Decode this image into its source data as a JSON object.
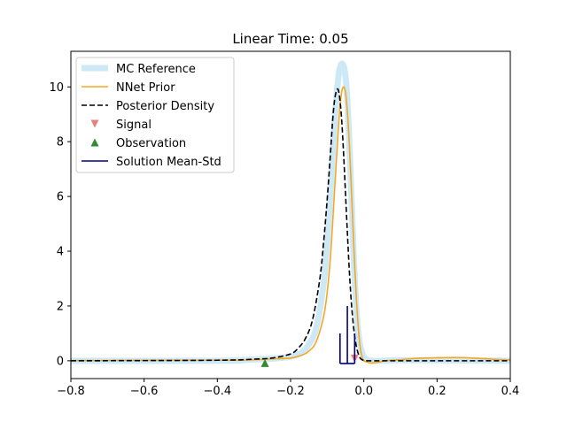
{
  "chart_data": {
    "type": "line",
    "title": "Linear Time: 0.05",
    "xlabel": "",
    "ylabel": "",
    "xlim": [
      -0.8,
      0.4
    ],
    "ylim": [
      -0.65,
      11.3
    ],
    "xticks": [
      -0.8,
      -0.6,
      -0.4,
      -0.2,
      0.0,
      0.2,
      0.4
    ],
    "xtick_labels": [
      "−0.8",
      "−0.6",
      "−0.4",
      "−0.2",
      "0.0",
      "0.2",
      "0.4"
    ],
    "yticks": [
      0,
      2,
      4,
      6,
      8,
      10
    ],
    "ytick_labels": [
      "0",
      "2",
      "4",
      "6",
      "8",
      "10"
    ],
    "grid": false,
    "legend_position": "top-left",
    "series": [
      {
        "name": "MC Reference",
        "style": "line",
        "color": "#cde9f6",
        "dash": "solid",
        "width": "thick",
        "x": [
          -0.8,
          -0.4,
          -0.3,
          -0.25,
          -0.2,
          -0.17,
          -0.15,
          -0.13,
          -0.11,
          -0.1,
          -0.09,
          -0.08,
          -0.07,
          -0.065,
          -0.06,
          -0.055,
          -0.05,
          -0.045,
          -0.04,
          -0.035,
          -0.03,
          -0.025,
          -0.02,
          -0.015,
          -0.01,
          0.0,
          0.01,
          0.02,
          0.05,
          0.1,
          0.2,
          0.4
        ],
        "y": [
          0.0,
          0.0,
          0.05,
          0.08,
          0.15,
          0.3,
          0.6,
          1.2,
          2.8,
          4.3,
          6.4,
          8.7,
          10.3,
          10.7,
          10.85,
          10.75,
          10.4,
          9.5,
          8.1,
          6.4,
          4.6,
          3.0,
          1.8,
          1.0,
          0.55,
          0.15,
          0.03,
          0.0,
          0.0,
          0.02,
          0.02,
          0.0
        ]
      },
      {
        "name": "NNet Prior",
        "style": "line",
        "color": "#f5a623",
        "dash": "solid",
        "width": "normal",
        "x": [
          -0.8,
          -0.4,
          -0.3,
          -0.25,
          -0.2,
          -0.17,
          -0.15,
          -0.13,
          -0.11,
          -0.1,
          -0.09,
          -0.08,
          -0.07,
          -0.065,
          -0.06,
          -0.055,
          -0.05,
          -0.045,
          -0.04,
          -0.035,
          -0.03,
          -0.025,
          -0.02,
          -0.015,
          -0.01,
          -0.005,
          0.0,
          0.01,
          0.02,
          0.04,
          0.06,
          0.1,
          0.15,
          0.2,
          0.25,
          0.3,
          0.35,
          0.4
        ],
        "y": [
          0.01,
          0.02,
          0.04,
          0.07,
          0.1,
          0.2,
          0.35,
          0.7,
          1.6,
          2.5,
          4.0,
          6.2,
          8.4,
          9.3,
          9.85,
          10.0,
          9.8,
          9.1,
          8.0,
          6.6,
          5.0,
          3.5,
          2.2,
          1.2,
          0.5,
          0.15,
          0.0,
          -0.05,
          -0.08,
          -0.05,
          0.0,
          0.04,
          0.09,
          0.11,
          0.12,
          0.1,
          0.06,
          0.03
        ]
      },
      {
        "name": "Posterior Density",
        "style": "line",
        "color": "#000000",
        "dash": "dashed",
        "width": "normal",
        "x": [
          -0.8,
          -0.4,
          -0.3,
          -0.25,
          -0.2,
          -0.18,
          -0.16,
          -0.14,
          -0.12,
          -0.11,
          -0.1,
          -0.09,
          -0.085,
          -0.08,
          -0.075,
          -0.07,
          -0.065,
          -0.06,
          -0.055,
          -0.05,
          -0.045,
          -0.04,
          -0.035,
          -0.03,
          -0.025,
          -0.02,
          -0.015,
          -0.01,
          -0.005,
          0.0,
          0.01,
          0.05,
          0.1,
          0.2,
          0.4
        ],
        "y": [
          0.0,
          0.02,
          0.06,
          0.1,
          0.25,
          0.45,
          0.8,
          1.5,
          3.0,
          4.3,
          5.9,
          7.8,
          8.8,
          9.5,
          9.85,
          9.9,
          9.5,
          8.7,
          7.5,
          6.1,
          4.7,
          3.4,
          2.3,
          1.5,
          0.9,
          0.5,
          0.25,
          0.1,
          0.04,
          0.02,
          0.0,
          0.0,
          0.0,
          0.0,
          0.0
        ]
      },
      {
        "name": "Signal",
        "style": "marker",
        "marker": "triangle-down",
        "color": "#e88080",
        "x": [
          -0.025
        ],
        "y": [
          0.08
        ]
      },
      {
        "name": "Observation",
        "style": "marker",
        "marker": "triangle-up",
        "color": "#2e8b2e",
        "x": [
          -0.27
        ],
        "y": [
          -0.08
        ]
      },
      {
        "name": "Solution Mean-Std",
        "style": "mean-std",
        "color": "#00007f",
        "mean": -0.045,
        "std": 0.02,
        "mean_height": 2.0,
        "std_height": 1.0,
        "base": -0.1
      }
    ]
  }
}
